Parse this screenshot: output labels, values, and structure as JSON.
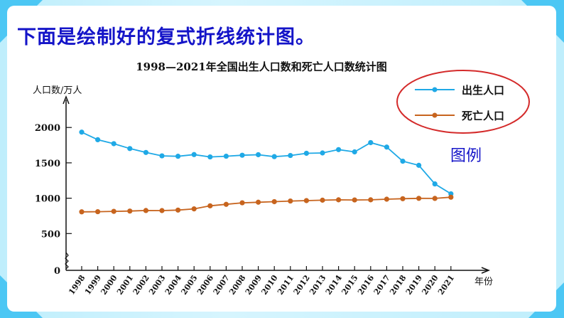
{
  "heading": "下面是绘制好的复式折线统计图。",
  "legend_caption": "图例",
  "colors": {
    "heading": "#1414c8",
    "births": "#1fa9e6",
    "deaths": "#c7641e",
    "legend_ellipse": "#d42a2a",
    "frame": "#4cc7f4"
  },
  "chart_data": {
    "type": "line",
    "title": "1998—2021年全国出生人口数和死亡人口数统计图",
    "ylabel": "人口数/万人",
    "xlabel": "年份",
    "ylim": [
      0,
      2000
    ],
    "yticks": [
      0,
      500,
      1000,
      1500,
      2000
    ],
    "y_axis_break": true,
    "grid": false,
    "legend_position": "upper right (circled)",
    "categories": [
      "1998",
      "1999",
      "2000",
      "2001",
      "2002",
      "2003",
      "2004",
      "2005",
      "2006",
      "2007",
      "2008",
      "2009",
      "2010",
      "2011",
      "2012",
      "2013",
      "2014",
      "2015",
      "2016",
      "2017",
      "2018",
      "2019",
      "2020",
      "2021"
    ],
    "series": [
      {
        "name": "出生人口",
        "color": "#1fa9e6",
        "values": [
          1934,
          1827,
          1771,
          1702,
          1647,
          1599,
          1593,
          1617,
          1584,
          1594,
          1608,
          1615,
          1588,
          1604,
          1635,
          1640,
          1687,
          1655,
          1786,
          1723,
          1523,
          1465,
          1202,
          1062
        ]
      },
      {
        "name": "死亡人口",
        "color": "#c7641e",
        "values": [
          807,
          809,
          814,
          818,
          826,
          825,
          832,
          849,
          892,
          913,
          935,
          943,
          951,
          960,
          966,
          972,
          977,
          975,
          977,
          986,
          993,
          998,
          997,
          1014
        ]
      }
    ]
  }
}
